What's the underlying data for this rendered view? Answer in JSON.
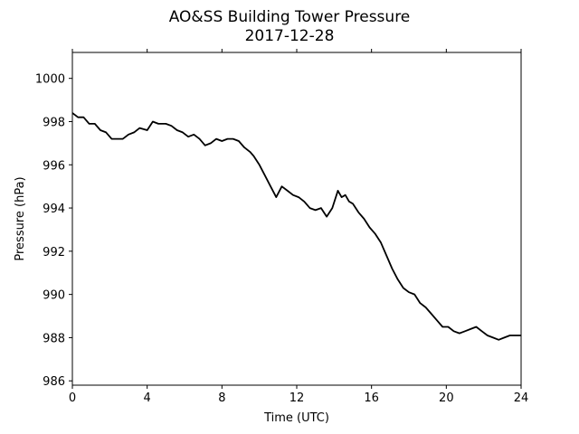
{
  "chart_data": {
    "type": "line",
    "title": "AO&SS Building Tower Pressure",
    "subtitle": "2017-12-28",
    "xlabel": "Time (UTC)",
    "ylabel": "Pressure (hPa)",
    "xlim": [
      0,
      24
    ],
    "ylim": [
      985.8,
      1001.2
    ],
    "xticks": [
      0,
      4,
      8,
      12,
      16,
      20,
      24
    ],
    "yticks": [
      986,
      988,
      990,
      992,
      994,
      996,
      998,
      1000
    ],
    "grid": false,
    "line_color": "#000000",
    "series": [
      {
        "x": [
          0,
          0.3,
          0.6,
          0.9,
          1.2,
          1.5,
          1.8,
          2.1,
          2.4,
          2.7,
          3.0,
          3.3,
          3.6,
          4.0,
          4.3,
          4.6,
          5.0,
          5.3,
          5.6,
          5.9,
          6.2,
          6.5,
          6.8,
          7.1,
          7.4,
          7.7,
          8.0,
          8.3,
          8.6,
          8.9,
          9.2,
          9.5,
          9.7,
          10.0,
          10.3,
          10.6,
          10.9,
          11.2,
          11.5,
          11.8,
          12.1,
          12.4,
          12.7,
          13.0,
          13.3,
          13.6,
          13.9,
          14.2,
          14.4,
          14.6,
          14.8,
          15.0,
          15.3,
          15.6,
          15.9,
          16.2,
          16.5,
          16.8,
          17.1,
          17.4,
          17.7,
          18.0,
          18.3,
          18.6,
          18.9,
          19.2,
          19.5,
          19.8,
          20.1,
          20.4,
          20.7,
          21.0,
          21.3,
          21.6,
          21.9,
          22.2,
          22.5,
          22.8,
          23.1,
          23.4,
          23.7,
          24.0
        ],
        "values": [
          998.4,
          998.2,
          998.2,
          997.9,
          997.9,
          997.6,
          997.5,
          997.2,
          997.2,
          997.2,
          997.4,
          997.5,
          997.7,
          997.6,
          998.0,
          997.9,
          997.9,
          997.8,
          997.6,
          997.5,
          997.3,
          997.4,
          997.2,
          996.9,
          997.0,
          997.2,
          997.1,
          997.2,
          997.2,
          997.1,
          996.8,
          996.6,
          996.4,
          996.0,
          995.5,
          995.0,
          994.5,
          995.0,
          994.8,
          994.6,
          994.5,
          994.3,
          994.0,
          993.9,
          994.0,
          993.6,
          994.0,
          994.8,
          994.5,
          994.6,
          994.3,
          994.2,
          993.8,
          993.5,
          993.1,
          992.8,
          992.4,
          991.8,
          991.2,
          990.7,
          990.3,
          990.1,
          990.0,
          989.6,
          989.4,
          989.1,
          988.8,
          988.5,
          988.5,
          988.3,
          988.2,
          988.3,
          988.4,
          988.5,
          988.3,
          988.1,
          988.0,
          987.9,
          988.0,
          988.1,
          988.1,
          988.1
        ]
      }
    ]
  }
}
